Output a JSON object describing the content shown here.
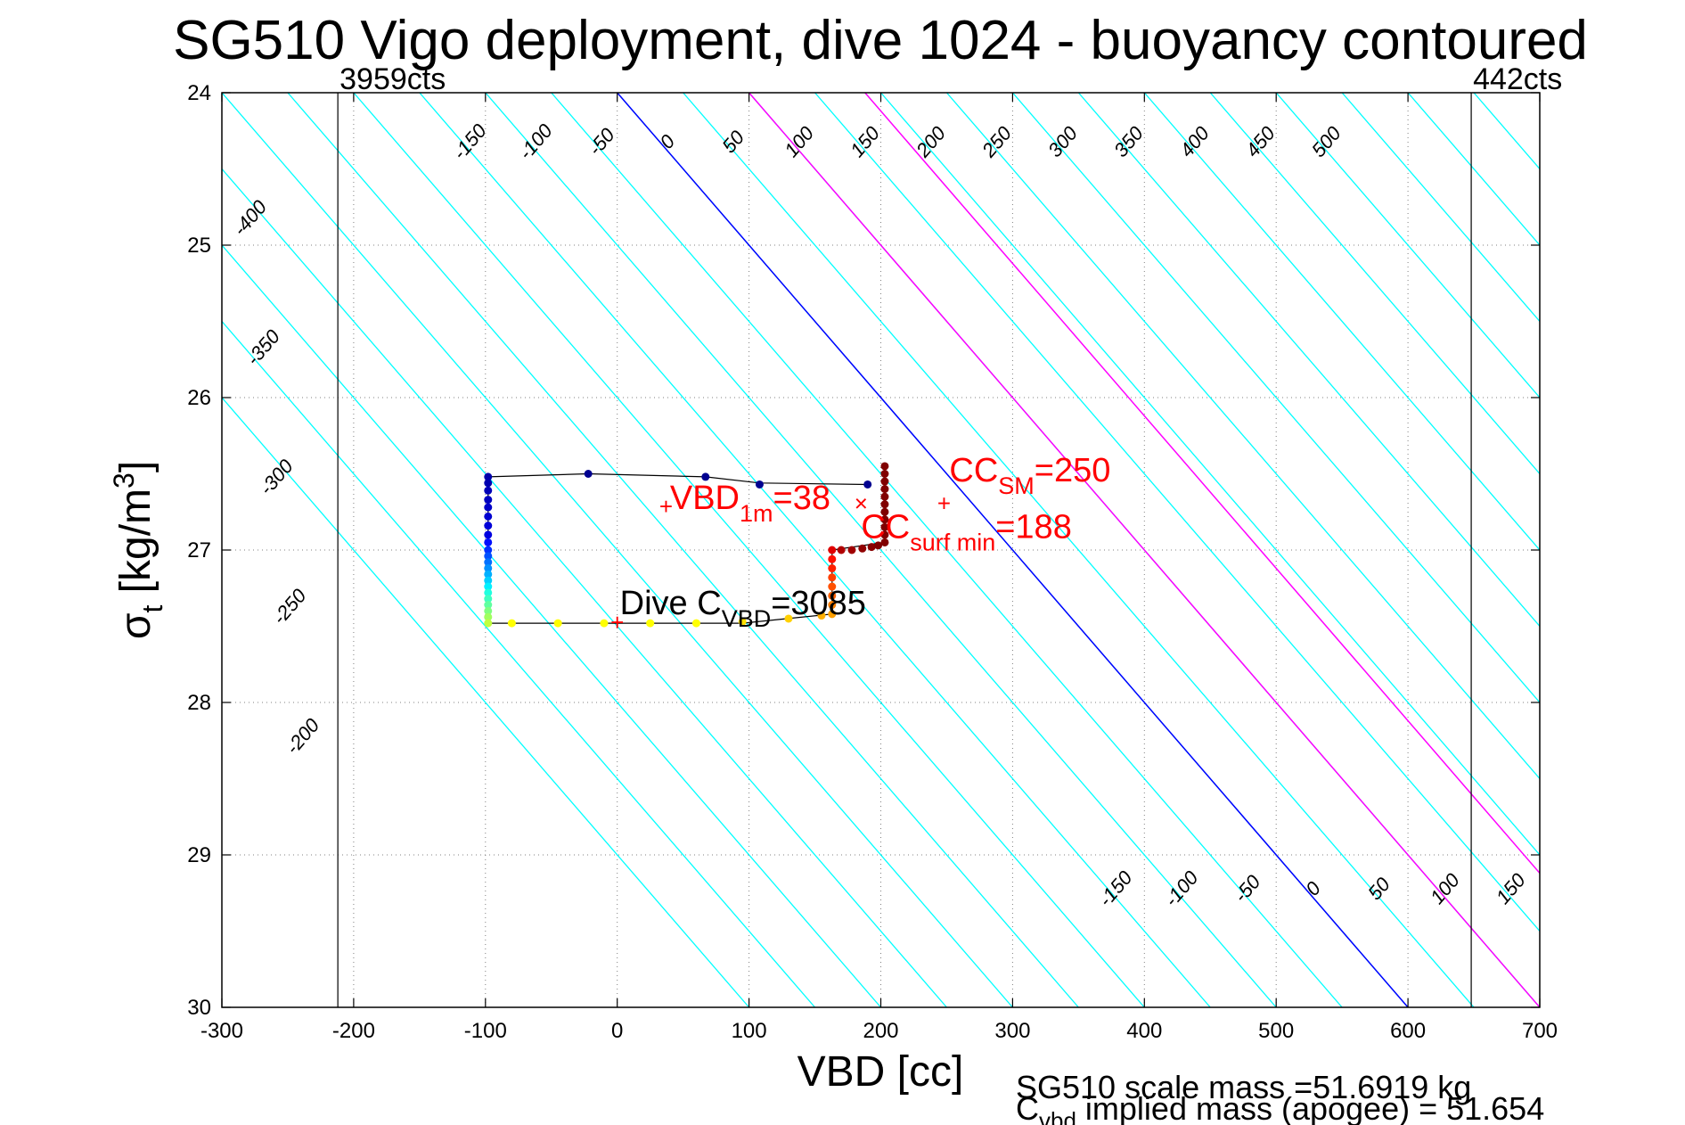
{
  "chart_data": {
    "type": "scatter",
    "title": "SG510 Vigo deployment, dive 1024 - buoyancy contoured",
    "xlabel": "VBD [cc]",
    "ylabel": "σ",
    "ylabel_sub": "t",
    "ylabel_unit": "[kg/m",
    "ylabel_unit_sup": "3",
    "ylabel_unit_close": "]",
    "xlim": [
      -300,
      700
    ],
    "ylim": [
      24,
      30
    ],
    "y_reversed": true,
    "grid": true,
    "x_ticks": [
      -300,
      -200,
      -100,
      0,
      100,
      200,
      300,
      400,
      500,
      600,
      700
    ],
    "y_ticks": [
      24,
      25,
      26,
      27,
      28,
      29,
      30
    ],
    "limit_lines": [
      {
        "x": -212,
        "label": "3959cts",
        "side": "left"
      },
      {
        "x": 648,
        "label": "442cts",
        "side": "right"
      }
    ],
    "contours": {
      "slope_cc_per_unit": 100,
      "cyan_values": [
        -500,
        -450,
        -400,
        -350,
        -300,
        -250,
        -200,
        -150,
        -100,
        -50,
        0,
        50,
        100,
        150,
        200,
        250,
        300,
        350,
        400,
        450,
        500,
        550,
        600,
        650,
        700,
        750,
        800,
        850,
        900
      ],
      "highlight": [
        {
          "value": 0,
          "color": "#0000ff"
        },
        {
          "value": 100,
          "color": "#ff00ff"
        },
        {
          "value": 188,
          "color": "#ff00ff"
        }
      ],
      "top_labels": {
        "y": 24.35,
        "values": [
          "-150",
          "-100",
          "-50",
          "0",
          "50",
          "100",
          "150",
          "200",
          "250",
          "300",
          "350",
          "400",
          "450",
          "500"
        ]
      },
      "bottom_labels": {
        "y": 29.25,
        "values": [
          "-150",
          "-100",
          "-50",
          "0",
          "50",
          "100",
          "150",
          "200",
          "250",
          "300",
          "350",
          "400",
          "450",
          "500"
        ]
      },
      "left_labels": [
        {
          "text": "-400",
          "x": -275,
          "y": 24.85
        },
        {
          "text": "-350",
          "x": -265,
          "y": 25.7
        },
        {
          "text": "-300",
          "x": -255,
          "y": 26.55
        },
        {
          "text": "-250",
          "x": -245,
          "y": 27.4
        },
        {
          "text": "-200",
          "x": -235,
          "y": 28.25
        }
      ]
    },
    "series": [
      {
        "points": [
          [
            -98,
            26.52,
            "#0000aa"
          ],
          [
            -98,
            26.56,
            "#0000b0"
          ],
          [
            -98,
            26.61,
            "#0000b8"
          ],
          [
            -98,
            26.67,
            "#0000c0"
          ],
          [
            -98,
            26.72,
            "#0000c8"
          ],
          [
            -98,
            26.78,
            "#0000d0"
          ],
          [
            -98,
            26.84,
            "#0000d8"
          ],
          [
            -98,
            26.9,
            "#0000e0"
          ],
          [
            -98,
            26.95,
            "#0010ff"
          ],
          [
            -98,
            27.0,
            "#0030ff"
          ],
          [
            -98,
            27.04,
            "#0050ff"
          ],
          [
            -98,
            27.08,
            "#0070ff"
          ],
          [
            -98,
            27.12,
            "#0090ff"
          ],
          [
            -98,
            27.16,
            "#00b0ff"
          ],
          [
            -98,
            27.2,
            "#00d0ff"
          ],
          [
            -98,
            27.24,
            "#00f0ff"
          ],
          [
            -98,
            27.28,
            "#20ffe0"
          ],
          [
            -98,
            27.32,
            "#40ffc0"
          ],
          [
            -98,
            27.36,
            "#60ffa0"
          ],
          [
            -98,
            27.4,
            "#80ff80"
          ],
          [
            -98,
            27.44,
            "#a0ff60"
          ],
          [
            -98,
            27.48,
            "#c0ff40"
          ],
          [
            -80,
            27.48,
            "#ffff00"
          ],
          [
            -45,
            27.48,
            "#ffff00"
          ],
          [
            -10,
            27.48,
            "#ffff00"
          ],
          [
            25,
            27.48,
            "#ffff00"
          ],
          [
            60,
            27.48,
            "#ffff00"
          ],
          [
            95,
            27.47,
            "#ffe000"
          ],
          [
            130,
            27.45,
            "#ffd000"
          ],
          [
            155,
            27.43,
            "#ffb000"
          ],
          [
            163,
            27.42,
            "#ffa000"
          ],
          [
            163,
            27.36,
            "#ff8000"
          ],
          [
            163,
            27.3,
            "#ff6000"
          ],
          [
            163,
            27.24,
            "#ff5000"
          ],
          [
            163,
            27.18,
            "#ff4000"
          ],
          [
            163,
            27.12,
            "#ff2000"
          ],
          [
            163,
            27.06,
            "#ff1000"
          ],
          [
            163,
            27.0,
            "#e00000"
          ],
          [
            170,
            27.0,
            "#b00000"
          ],
          [
            178,
            27.0,
            "#a00000"
          ],
          [
            186,
            26.99,
            "#900000"
          ],
          [
            193,
            26.98,
            "#880000"
          ],
          [
            198,
            26.97,
            "#800000"
          ],
          [
            203,
            26.95,
            "#800000"
          ],
          [
            203,
            26.9,
            "#800000"
          ],
          [
            203,
            26.85,
            "#800000"
          ],
          [
            203,
            26.8,
            "#800000"
          ],
          [
            203,
            26.75,
            "#800000"
          ],
          [
            203,
            26.7,
            "#800000"
          ],
          [
            203,
            26.65,
            "#800000"
          ],
          [
            203,
            26.6,
            "#800000"
          ],
          [
            203,
            26.55,
            "#800000"
          ],
          [
            203,
            26.5,
            "#800000"
          ],
          [
            203,
            26.45,
            "#800000"
          ],
          [
            190,
            26.57,
            "#000090"
          ],
          [
            108,
            26.57,
            "#000090"
          ],
          [
            67,
            26.52,
            "#000090"
          ],
          [
            -22,
            26.5,
            "#000090"
          ]
        ],
        "path": [
          [
            -98,
            26.52
          ],
          [
            -98,
            27.48
          ],
          [
            95,
            27.48
          ],
          [
            163,
            27.42
          ],
          [
            163,
            27.0
          ],
          [
            203,
            26.95
          ],
          [
            203,
            26.45
          ]
        ],
        "upper_path": [
          [
            -98,
            26.52
          ],
          [
            -22,
            26.5
          ],
          [
            67,
            26.52
          ],
          [
            108,
            26.56
          ],
          [
            190,
            26.57
          ]
        ]
      }
    ],
    "markers": [
      {
        "x": 37,
        "y": 26.72,
        "symbol": "+",
        "color": "#ff0000"
      },
      {
        "x": 185,
        "y": 26.7,
        "symbol": "×",
        "color": "#ff0000"
      },
      {
        "x": 248,
        "y": 26.7,
        "symbol": "+",
        "color": "#ff0000"
      },
      {
        "x": 0,
        "y": 27.48,
        "symbol": "+",
        "color": "#ff0000"
      }
    ],
    "annotations": [
      {
        "main": "VBD",
        "sub": "1m",
        "rest": "=38",
        "x": 40,
        "y": 26.73,
        "color": "#ff0000"
      },
      {
        "main": "CC",
        "sub": "SM",
        "rest": "=250",
        "x": 252,
        "y": 26.55,
        "color": "#ff0000"
      },
      {
        "main": "CC",
        "sub": "surf min",
        "rest": "=188",
        "x": 185,
        "y": 26.92,
        "color": "#ff0000"
      },
      {
        "main": "Dive C",
        "sub": "VBD",
        "rest": "=3085",
        "x": 2,
        "y": 27.42,
        "color": "#000000"
      }
    ],
    "footer": {
      "line1": "SG510 scale mass =51.6919 kg",
      "line2_main": "C",
      "line2_sub": "vbd",
      "line2_rest": " implied mass (apogee) = 51.654"
    },
    "colors": {
      "contour": "#00ffff",
      "zero_contour": "#0000ff",
      "limit_lines": "#808080",
      "annotation_red": "#ff0000",
      "grid": "#808080",
      "path": "#000000"
    }
  }
}
